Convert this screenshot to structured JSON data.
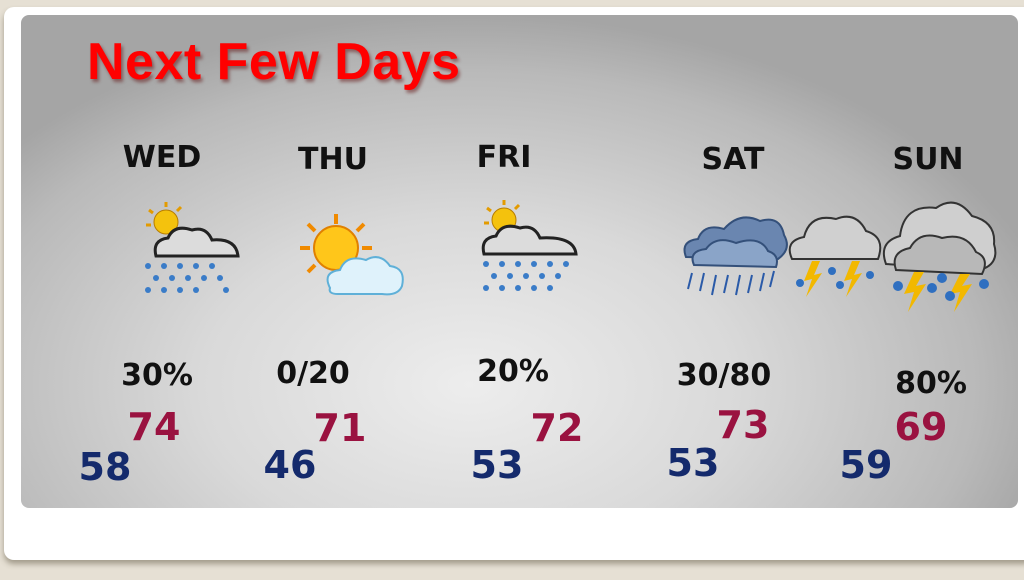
{
  "title": "Next Few Days",
  "days": [
    {
      "day": "WED",
      "icon": "partly-sunny-rain-icon",
      "precip": "30%",
      "high": "74",
      "low": "58"
    },
    {
      "day": "THU",
      "icon": "sun-cloud-icon",
      "precip": "0/20",
      "high": "71",
      "low": "46"
    },
    {
      "day": "FRI",
      "icon": "partly-sunny-rain-icon",
      "precip": "20%",
      "high": "72",
      "low": "53"
    },
    {
      "day": "SAT",
      "icon": "rain-thunderstorm-icon",
      "precip": "30/80",
      "high": "73",
      "low": "53"
    },
    {
      "day": "SUN",
      "icon": "thunderstorm-icon",
      "precip": "80%",
      "high": "69",
      "low": "59"
    }
  ],
  "colors": {
    "title": "#ff0000",
    "high": "#9a1240",
    "low": "#142a6c"
  }
}
